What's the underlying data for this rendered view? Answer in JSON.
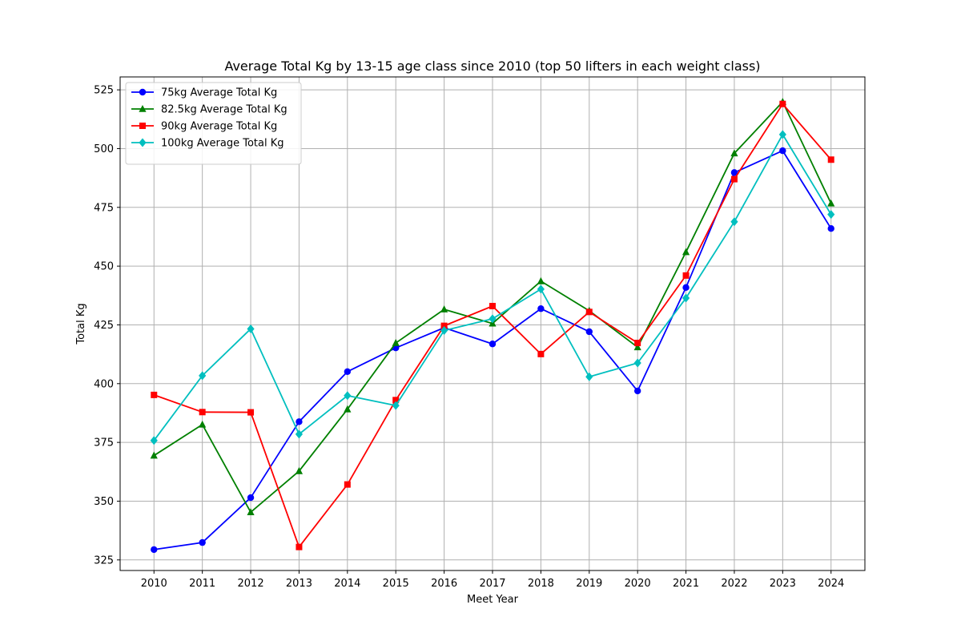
{
  "chart_data": {
    "type": "line",
    "title": "Average Total Kg by 13-15 age class since 2010 (top 50 lifters in each weight class)",
    "xlabel": "Meet Year",
    "ylabel": "Total Kg",
    "x": [
      2010,
      2011,
      2012,
      2013,
      2014,
      2015,
      2016,
      2017,
      2018,
      2019,
      2020,
      2021,
      2022,
      2023,
      2024
    ],
    "x_tick_labels": [
      "2010",
      "2011",
      "2012",
      "2013",
      "2014",
      "2015",
      "2016",
      "2017",
      "2018",
      "2019",
      "2020",
      "2021",
      "2022",
      "2023",
      "2024"
    ],
    "y_ticks": [
      325,
      350,
      375,
      400,
      425,
      450,
      475,
      500,
      525
    ],
    "y_tick_labels": [
      "325",
      "350",
      "375",
      "400",
      "425",
      "450",
      "475",
      "500",
      "525"
    ],
    "xlim": [
      2009.3,
      2024.7
    ],
    "ylim": [
      320.5,
      530.5
    ],
    "grid": true,
    "legend_position": "top-left",
    "series": [
      {
        "name": "75kg Average Total Kg",
        "color": "#0000ff",
        "marker": "circle",
        "values": [
          329.4,
          332.4,
          351.5,
          383.8,
          405.1,
          415.2,
          423.8,
          416.9,
          431.9,
          422.1,
          396.9,
          440.9,
          489.8,
          499.1,
          466.0
        ]
      },
      {
        "name": "82.5kg Average Total Kg",
        "color": "#008000",
        "marker": "triangle",
        "values": [
          369.4,
          382.6,
          345.3,
          362.8,
          389.1,
          417.3,
          431.6,
          425.6,
          443.6,
          431.0,
          415.5,
          456.0,
          498.0,
          519.9,
          476.7
        ]
      },
      {
        "name": "90kg Average Total Kg",
        "color": "#ff0000",
        "marker": "square",
        "values": [
          395.2,
          387.9,
          387.8,
          330.5,
          357.1,
          393.0,
          424.6,
          433.0,
          412.6,
          430.5,
          417.3,
          446.0,
          487.0,
          519.0,
          495.3
        ]
      },
      {
        "name": "100kg Average Total Kg",
        "color": "#00bfbf",
        "marker": "diamond",
        "values": [
          375.8,
          403.4,
          423.3,
          378.5,
          394.9,
          390.7,
          422.6,
          427.6,
          440.2,
          402.9,
          408.8,
          436.4,
          468.9,
          506.0,
          472.0
        ]
      }
    ]
  }
}
